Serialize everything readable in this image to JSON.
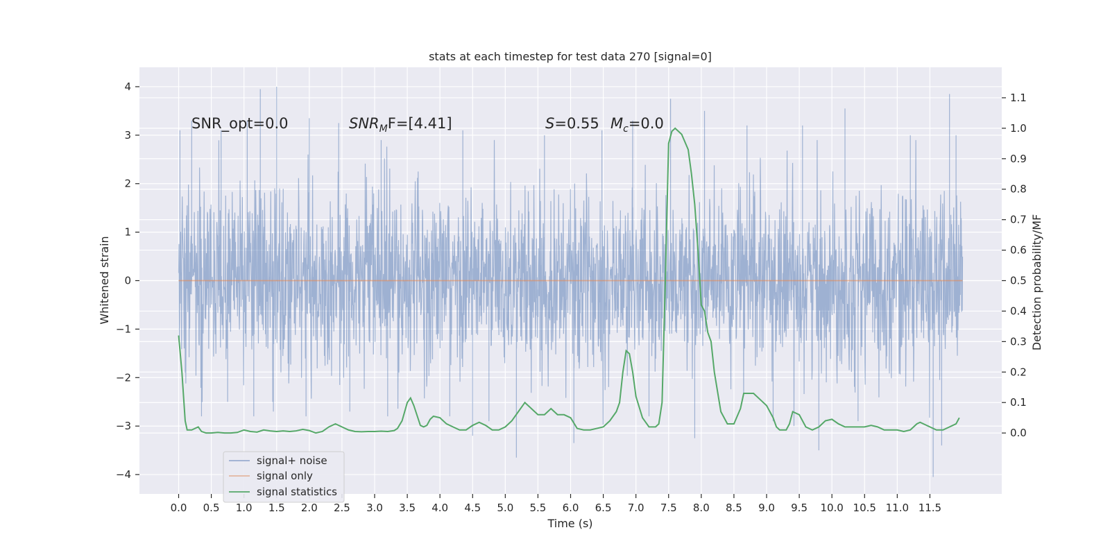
{
  "chart_data": {
    "type": "line",
    "title": "stats at each timestep for test data 270 [signal=0]",
    "xlabel": "Time (s)",
    "ylabel_left": "Whitened strain",
    "ylabel_right": "Detection probability/MF",
    "xlim": [
      -0.6,
      12.6
    ],
    "ylim_left": [
      -4.4,
      4.4
    ],
    "ylim_right": [
      -0.2,
      1.2
    ],
    "x_ticks": [
      "0.0",
      "0.5",
      "1.0",
      "1.5",
      "2.0",
      "2.5",
      "3.0",
      "3.5",
      "4.0",
      "4.5",
      "5.0",
      "5.5",
      "6.0",
      "6.5",
      "7.0",
      "7.5",
      "8.0",
      "8.5",
      "9.0",
      "9.5",
      "10.0",
      "10.5",
      "11.0",
      "11.5"
    ],
    "y_ticks_left": [
      "4",
      "3",
      "2",
      "1",
      "0",
      "−1",
      "−2",
      "−3",
      "−4"
    ],
    "y_ticks_right": [
      "1.1",
      "1.0",
      "0.9",
      "0.8",
      "0.7",
      "0.6",
      "0.5",
      "0.4",
      "0.3",
      "0.2",
      "0.1",
      "0.0"
    ],
    "grid": true,
    "legend_position": "lower-left",
    "colors": {
      "noise": "#4c72b0",
      "signal": "#dd8452",
      "stats": "#55a868",
      "background": "#eaeaf2",
      "grid": "#ffffff"
    },
    "annotations": {
      "snr_opt": "SNR_opt=0.0",
      "snr_mf_base": "SNR",
      "snr_mf_sub": "M",
      "snr_mf_rest": "F=[4.41]",
      "s_label": "S",
      "s_value": "=0.55",
      "mc_base": "M",
      "mc_sub": "c",
      "mc_value": "=0.0"
    },
    "series": [
      {
        "name": "signal+ noise",
        "description_kind": "noise",
        "x_range": [
          0.0,
          12.0
        ],
        "typical_std": 1.0,
        "values_sparse": [
          [
            0.02,
            3.1
          ],
          [
            0.1,
            -1.9
          ],
          [
            0.2,
            3.3
          ],
          [
            0.35,
            -2.8
          ],
          [
            0.65,
            3.1
          ],
          [
            0.75,
            -2.5
          ],
          [
            1.05,
            3.3
          ],
          [
            1.15,
            -2.8
          ],
          [
            1.25,
            3.95
          ],
          [
            1.5,
            4.0
          ],
          [
            1.45,
            -2.7
          ],
          [
            2.0,
            3.35
          ],
          [
            1.95,
            -2.8
          ],
          [
            2.45,
            3.25
          ],
          [
            2.62,
            -2.7
          ],
          [
            3.1,
            2.9
          ],
          [
            3.2,
            -2.8
          ],
          [
            4.15,
            -2.8
          ],
          [
            4.35,
            3.1
          ],
          [
            4.5,
            -3.2
          ],
          [
            4.75,
            -2.9
          ],
          [
            5.17,
            -3.65
          ],
          [
            5.6,
            3.0
          ],
          [
            6.05,
            -3.35
          ],
          [
            6.48,
            3.1
          ],
          [
            6.95,
            3.3
          ],
          [
            7.2,
            -2.8
          ],
          [
            7.53,
            3.75
          ],
          [
            7.9,
            -3.25
          ],
          [
            8.05,
            3.5
          ],
          [
            8.7,
            3.2
          ],
          [
            9.1,
            -2.9
          ],
          [
            9.55,
            3.2
          ],
          [
            9.8,
            -3.5
          ],
          [
            10.2,
            3.55
          ],
          [
            10.4,
            -2.9
          ],
          [
            11.2,
            3.0
          ],
          [
            11.55,
            -4.05
          ],
          [
            11.68,
            -3.4
          ],
          [
            11.8,
            3.85
          ],
          [
            11.9,
            3.0
          ]
        ]
      },
      {
        "name": "signal only",
        "x": [
          0.0,
          12.0
        ],
        "values": [
          0.0,
          0.0
        ]
      },
      {
        "name": "signal statistics",
        "axis": "right",
        "x": [
          0.0,
          0.05,
          0.1,
          0.13,
          0.2,
          0.3,
          0.35,
          0.42,
          0.5,
          0.6,
          0.7,
          0.8,
          0.9,
          1.0,
          1.1,
          1.2,
          1.3,
          1.4,
          1.5,
          1.6,
          1.7,
          1.8,
          1.9,
          2.0,
          2.1,
          2.2,
          2.3,
          2.4,
          2.5,
          2.6,
          2.7,
          2.8,
          2.9,
          3.0,
          3.1,
          3.2,
          3.3,
          3.35,
          3.42,
          3.5,
          3.55,
          3.6,
          3.7,
          3.75,
          3.8,
          3.85,
          3.9,
          4.0,
          4.1,
          4.2,
          4.3,
          4.4,
          4.5,
          4.6,
          4.7,
          4.8,
          4.9,
          5.0,
          5.1,
          5.2,
          5.3,
          5.4,
          5.45,
          5.5,
          5.6,
          5.7,
          5.8,
          5.9,
          6.0,
          6.1,
          6.2,
          6.3,
          6.4,
          6.5,
          6.6,
          6.7,
          6.75,
          6.8,
          6.85,
          6.9,
          6.95,
          7.0,
          7.1,
          7.2,
          7.3,
          7.35,
          7.4,
          7.45,
          7.5,
          7.55,
          7.6,
          7.65,
          7.7,
          7.8,
          7.85,
          7.9,
          7.95,
          8.0,
          8.05,
          8.1,
          8.15,
          8.2,
          8.3,
          8.4,
          8.5,
          8.6,
          8.65,
          8.8,
          8.9,
          9.0,
          9.1,
          9.15,
          9.2,
          9.3,
          9.35,
          9.4,
          9.5,
          9.6,
          9.7,
          9.8,
          9.9,
          10.0,
          10.1,
          10.2,
          10.3,
          10.4,
          10.5,
          10.6,
          10.7,
          10.8,
          10.9,
          11.0,
          11.1,
          11.2,
          11.3,
          11.35,
          11.5,
          11.6,
          11.7,
          11.8,
          11.9,
          11.95
        ],
        "values": [
          0.32,
          0.2,
          0.04,
          0.01,
          0.01,
          0.02,
          0.005,
          0.0,
          0.0,
          0.002,
          0.0,
          0.0,
          0.002,
          0.01,
          0.005,
          0.003,
          0.01,
          0.007,
          0.005,
          0.007,
          0.005,
          0.007,
          0.012,
          0.008,
          0.0,
          0.005,
          0.02,
          0.03,
          0.02,
          0.01,
          0.005,
          0.004,
          0.005,
          0.005,
          0.006,
          0.005,
          0.008,
          0.015,
          0.04,
          0.1,
          0.115,
          0.09,
          0.025,
          0.02,
          0.025,
          0.045,
          0.055,
          0.05,
          0.03,
          0.02,
          0.01,
          0.01,
          0.025,
          0.035,
          0.025,
          0.01,
          0.01,
          0.02,
          0.04,
          0.07,
          0.1,
          0.08,
          0.07,
          0.06,
          0.06,
          0.08,
          0.06,
          0.06,
          0.05,
          0.015,
          0.01,
          0.01,
          0.015,
          0.02,
          0.04,
          0.07,
          0.1,
          0.2,
          0.27,
          0.26,
          0.2,
          0.12,
          0.05,
          0.02,
          0.02,
          0.03,
          0.1,
          0.5,
          0.95,
          0.99,
          1.0,
          0.99,
          0.98,
          0.93,
          0.85,
          0.75,
          0.6,
          0.42,
          0.4,
          0.33,
          0.3,
          0.2,
          0.07,
          0.03,
          0.03,
          0.08,
          0.13,
          0.13,
          0.11,
          0.09,
          0.05,
          0.02,
          0.01,
          0.01,
          0.03,
          0.07,
          0.06,
          0.02,
          0.01,
          0.02,
          0.04,
          0.045,
          0.03,
          0.02,
          0.02,
          0.02,
          0.02,
          0.025,
          0.02,
          0.01,
          0.01,
          0.01,
          0.005,
          0.01,
          0.03,
          0.035,
          0.02,
          0.01,
          0.01,
          0.02,
          0.03,
          0.05
        ]
      }
    ],
    "legend": [
      "signal+ noise",
      "signal only",
      "signal statistics"
    ]
  }
}
